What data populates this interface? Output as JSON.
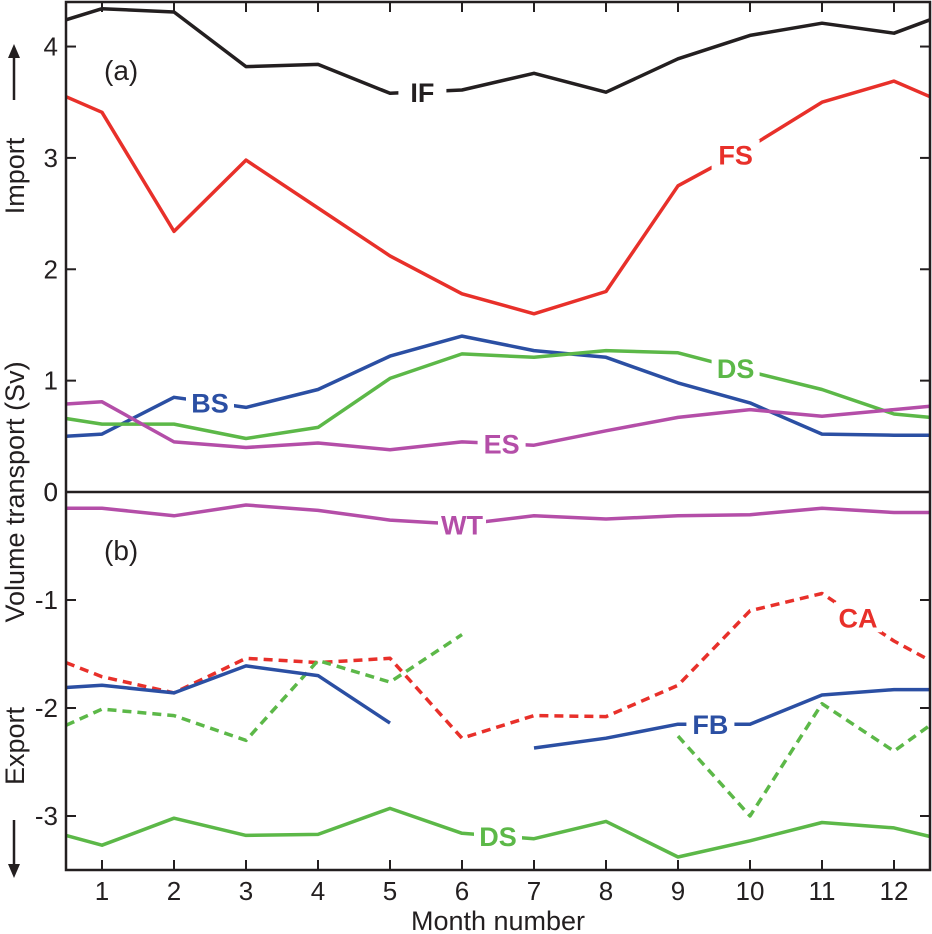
{
  "chart_data": [
    {
      "panel": "(a)",
      "type": "line",
      "x": [
        0.5,
        1,
        2,
        3,
        4,
        5,
        6,
        7,
        8,
        9,
        10,
        11,
        12,
        12.5
      ],
      "ylim": [
        0,
        4.4
      ],
      "yticks": [
        0,
        1,
        2,
        3,
        4
      ],
      "series": [
        {
          "name": "IF",
          "color": "#231f20",
          "style": "solid",
          "label_at_x": 5.45,
          "values": [
            4.24,
            4.34,
            4.31,
            3.82,
            3.84,
            3.58,
            3.61,
            3.76,
            3.59,
            3.89,
            4.1,
            4.21,
            4.12,
            4.24
          ]
        },
        {
          "name": "FS",
          "color": "#e8302a",
          "style": "solid",
          "label_at_x": 9.8,
          "values": [
            3.55,
            3.41,
            2.34,
            2.98,
            2.55,
            2.12,
            1.78,
            1.6,
            1.8,
            2.75,
            3.1,
            3.5,
            3.69,
            3.55
          ]
        },
        {
          "name": "BS",
          "color": "#2b4fa3",
          "style": "solid",
          "label_at_x": 2.5,
          "values": [
            0.5,
            0.52,
            0.85,
            0.76,
            0.92,
            1.22,
            1.4,
            1.27,
            1.21,
            0.98,
            0.8,
            0.52,
            0.51,
            0.51
          ]
        },
        {
          "name": "DS",
          "color": "#5cb848",
          "style": "solid",
          "label_at_x": 9.8,
          "values": [
            0.66,
            0.61,
            0.61,
            0.48,
            0.58,
            1.02,
            1.24,
            1.21,
            1.27,
            1.25,
            1.08,
            0.92,
            0.7,
            0.67
          ]
        },
        {
          "name": "ES",
          "color": "#b44ea8",
          "style": "solid",
          "label_at_x": 6.55,
          "values": [
            0.79,
            0.81,
            0.45,
            0.4,
            0.44,
            0.38,
            0.45,
            0.42,
            0.55,
            0.67,
            0.74,
            0.68,
            0.74,
            0.77
          ]
        }
      ]
    },
    {
      "panel": "(b)",
      "type": "line",
      "x": [
        0.5,
        1,
        2,
        3,
        4,
        5,
        6,
        7,
        8,
        9,
        10,
        11,
        12,
        12.5
      ],
      "ylim": [
        -3.5,
        0
      ],
      "yticks": [
        -3,
        -2,
        -1,
        0
      ],
      "series": [
        {
          "name": "WT",
          "color": "#b44ea8",
          "style": "solid",
          "label_at_x": 6.0,
          "values": [
            -0.15,
            -0.15,
            -0.22,
            -0.12,
            -0.17,
            -0.26,
            -0.3,
            -0.22,
            -0.25,
            -0.22,
            -0.21,
            -0.15,
            -0.19,
            -0.19
          ]
        },
        {
          "name": "CA",
          "color": "#e8302a",
          "style": "dashed",
          "label_at_x": 11.5,
          "values": [
            -1.58,
            -1.71,
            -1.86,
            -1.54,
            -1.58,
            -1.54,
            -2.28,
            -2.07,
            -2.08,
            -1.79,
            -1.1,
            -0.94,
            -1.38,
            -1.56
          ]
        },
        {
          "name": "DS",
          "color": "#5cb848",
          "style": "dashed",
          "label_at_x": 7.7,
          "values": [
            -2.16,
            -2.01,
            -2.07,
            -2.3,
            -1.56,
            -1.76,
            -1.32,
            null,
            null,
            -2.26,
            -3.0,
            -1.96,
            -2.4,
            -2.16
          ]
        },
        {
          "name": "FB",
          "color": "#2b4fa3",
          "style": "solid",
          "label_at_x": 9.45,
          "values": [
            -1.81,
            -1.79,
            -1.86,
            -1.61,
            -1.7,
            -2.14,
            null,
            -2.37,
            -2.28,
            -2.15,
            -2.15,
            -1.88,
            -1.83,
            -1.83
          ]
        },
        {
          "name": "DS",
          "color": "#5cb848",
          "style": "solid",
          "label_at_x": 6.5,
          "values": [
            -3.18,
            -3.27,
            -3.02,
            -3.18,
            -3.17,
            -2.93,
            -3.16,
            -3.21,
            -3.05,
            -3.38,
            -3.23,
            -3.06,
            -3.11,
            -3.19
          ]
        }
      ]
    }
  ],
  "axes": {
    "xlabel": "Month number",
    "ylabel": "Volume transport (Sv)",
    "xlim": [
      0.5,
      12.5
    ],
    "xticks": [
      1,
      2,
      3,
      4,
      5,
      6,
      7,
      8,
      9,
      10,
      11,
      12
    ],
    "import_label": "Import",
    "export_label": "Export"
  }
}
